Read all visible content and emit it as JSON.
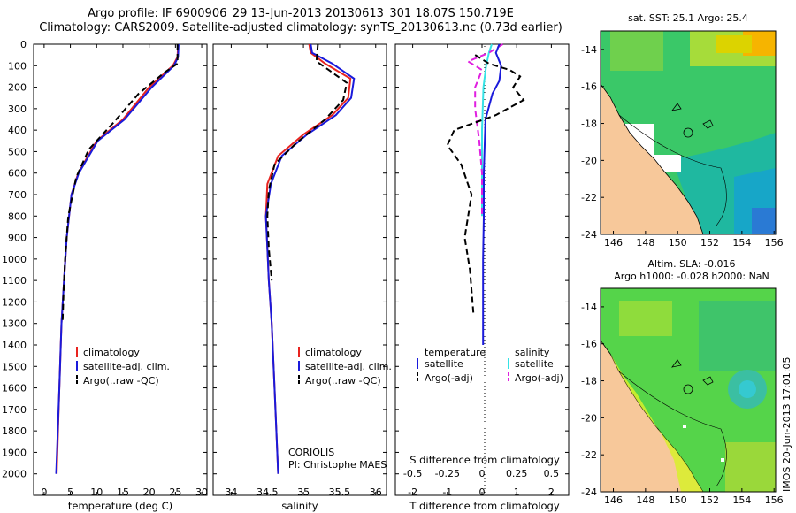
{
  "header": {
    "line1": "Argo profile: IF 6900906_29 13-Jun-2013 20130613_301 18.07S 150.719E",
    "line2": "Climatology: CARS2009. Satellite-adjusted climatology: synTS_20130613.nc (0.73d earlier)"
  },
  "colors": {
    "climatology": "#e8231f",
    "satellite": "#1a1adb",
    "argo": "#000000",
    "sal_satellite": "#35e3e6",
    "sal_argo": "#e01fe0",
    "land": "#f7c89a"
  },
  "panels": {
    "temperature": {
      "xlabel": "temperature (deg C)",
      "xticks": [
        "0",
        "5",
        "10",
        "15",
        "20",
        "25",
        "30"
      ],
      "legend": [
        "climatology",
        "satellite-adj. clim.",
        "Argo(..raw -QC)"
      ]
    },
    "salinity": {
      "xlabel": "salinity",
      "xticks": [
        "34",
        "34.5",
        "35",
        "35.5",
        "36"
      ],
      "legend": [
        "climatology",
        "satellite-adj. clim.",
        "Argo(..raw -QC)"
      ],
      "note1": "CORIOLIS",
      "note2": "PI: Christophe MAES"
    },
    "difference": {
      "xlabel": "T difference from climatology",
      "s_label": "S difference from climatology",
      "xticks_t": [
        "-2",
        "-1",
        "0",
        "1",
        "2"
      ],
      "xticks_s": [
        "-0.5",
        "-0.25",
        "0",
        "0.25",
        "0.5"
      ],
      "legend_t_title": "temperature",
      "legend_s_title": "salinity",
      "legend_t": [
        "satellite",
        "Argo(-adj)"
      ],
      "legend_s": [
        "satellite",
        "Argo(-adj)"
      ]
    },
    "depth_ticks": [
      "0",
      "100",
      "200",
      "300",
      "400",
      "500",
      "600",
      "700",
      "800",
      "900",
      "1000",
      "1100",
      "1200",
      "1300",
      "1400",
      "1500",
      "1600",
      "1700",
      "1800",
      "1900",
      "2000"
    ]
  },
  "maps": {
    "sst_title": "sat. SST: 25.1  Argo: 25.4",
    "sla_title1": "Altim. SLA: -0.016",
    "sla_title2": "Argo h1000: -0.028 h2000: NaN",
    "lat_ticks": [
      "-14",
      "-16",
      "-18",
      "-20",
      "-22",
      "-24"
    ],
    "lon_ticks": [
      "146",
      "148",
      "150",
      "152",
      "154",
      "156"
    ],
    "stamp": "IMOS 20-Jun-2013 17:01:05"
  },
  "chart_data": [
    {
      "type": "line",
      "title": "",
      "xlabel": "temperature (deg C)",
      "ylabel": "",
      "xlim": [
        -2,
        31
      ],
      "ylim": [
        2100,
        0
      ],
      "series": [
        {
          "name": "climatology",
          "x": [
            25.5,
            25.4,
            24.5,
            20,
            15,
            10,
            6.5,
            5.2,
            4.3,
            3.8,
            3.3,
            2.9,
            2.4
          ],
          "y": [
            0,
            60,
            100,
            200,
            350,
            450,
            600,
            700,
            900,
            1100,
            1300,
            1600,
            2000
          ]
        },
        {
          "name": "satellite-adj. clim.",
          "x": [
            25.6,
            25.5,
            24.7,
            20.5,
            15.3,
            10.2,
            6.6,
            5.2,
            4.3,
            3.8,
            3.3,
            2.9,
            2.3
          ],
          "y": [
            0,
            60,
            100,
            200,
            350,
            450,
            600,
            700,
            900,
            1100,
            1300,
            1600,
            2000
          ]
        },
        {
          "name": "Argo(..raw -QC)",
          "x": [
            25.4,
            25.4,
            23,
            18,
            13,
            8.5,
            6.1,
            4.6,
            4,
            3.7,
            3.5
          ],
          "y": [
            0,
            90,
            130,
            230,
            370,
            490,
            620,
            800,
            1000,
            1150,
            1300
          ]
        }
      ]
    },
    {
      "type": "line",
      "title": "",
      "xlabel": "salinity",
      "ylabel": "",
      "xlim": [
        33.75,
        36.15
      ],
      "ylim": [
        2100,
        0
      ],
      "series": [
        {
          "name": "climatology",
          "x": [
            35.08,
            35.1,
            35.3,
            35.65,
            35.62,
            35.4,
            35.0,
            34.65,
            34.5,
            34.48,
            34.5,
            34.52,
            34.56,
            34.6,
            34.65
          ],
          "y": [
            0,
            40,
            90,
            160,
            250,
            330,
            420,
            520,
            650,
            800,
            950,
            1100,
            1300,
            1600,
            2000
          ]
        },
        {
          "name": "satellite-adj. clim.",
          "x": [
            35.1,
            35.12,
            35.4,
            35.7,
            35.66,
            35.45,
            35.05,
            34.7,
            34.55,
            34.48,
            34.5,
            34.52,
            34.56,
            34.6,
            34.65
          ],
          "y": [
            0,
            40,
            90,
            160,
            250,
            330,
            420,
            520,
            650,
            800,
            950,
            1100,
            1300,
            1600,
            2000
          ]
        },
        {
          "name": "Argo(..raw -QC)",
          "x": [
            35.2,
            35.18,
            35.35,
            35.6,
            35.55,
            35.3,
            34.9,
            34.6,
            34.52,
            34.5,
            34.52,
            34.56
          ],
          "y": [
            0,
            80,
            120,
            180,
            260,
            350,
            460,
            560,
            680,
            800,
            950,
            1100
          ]
        }
      ]
    },
    {
      "type": "line",
      "title": "",
      "xlabel": "T difference from climatology",
      "ylabel": "",
      "xlim": [
        -2.5,
        2.5
      ],
      "ylim": [
        2100,
        0
      ],
      "series": [
        {
          "name": "satellite",
          "x": [
            0.5,
            0.4,
            0.55,
            0.5,
            0.3,
            0.1,
            0.05,
            0.05,
            0.03,
            0.03,
            0.03
          ],
          "y": [
            0,
            40,
            100,
            170,
            230,
            350,
            600,
            800,
            1000,
            1200,
            1400
          ]
        },
        {
          "name": "Argo(-adj)",
          "x": [
            -0.2,
            0.2,
            0.8,
            1.1,
            0.9,
            1.2,
            0.4,
            -0.8,
            -1.0,
            -0.6,
            -0.3,
            -0.5,
            -0.35,
            -0.25
          ],
          "y": [
            50,
            90,
            120,
            150,
            200,
            260,
            330,
            400,
            470,
            560,
            700,
            900,
            1050,
            1250
          ]
        }
      ]
    },
    {
      "type": "line",
      "title": "",
      "xlabel": "S difference from climatology",
      "ylabel": "",
      "xlim": [
        -0.625,
        0.625
      ],
      "ylim": [
        2100,
        0
      ],
      "series": [
        {
          "name": "satellite",
          "x": [
            0.07,
            0.05,
            0.03,
            0.01,
            0.0,
            0.0,
            0.0
          ],
          "y": [
            0,
            40,
            100,
            200,
            400,
            600,
            800
          ]
        },
        {
          "name": "Argo(-adj)",
          "x": [
            0.15,
            0.05,
            -0.1,
            0.0,
            -0.05,
            -0.05,
            -0.02,
            0.0,
            0.0
          ],
          "y": [
            0,
            40,
            80,
            120,
            200,
            300,
            450,
            600,
            800
          ]
        }
      ]
    }
  ]
}
